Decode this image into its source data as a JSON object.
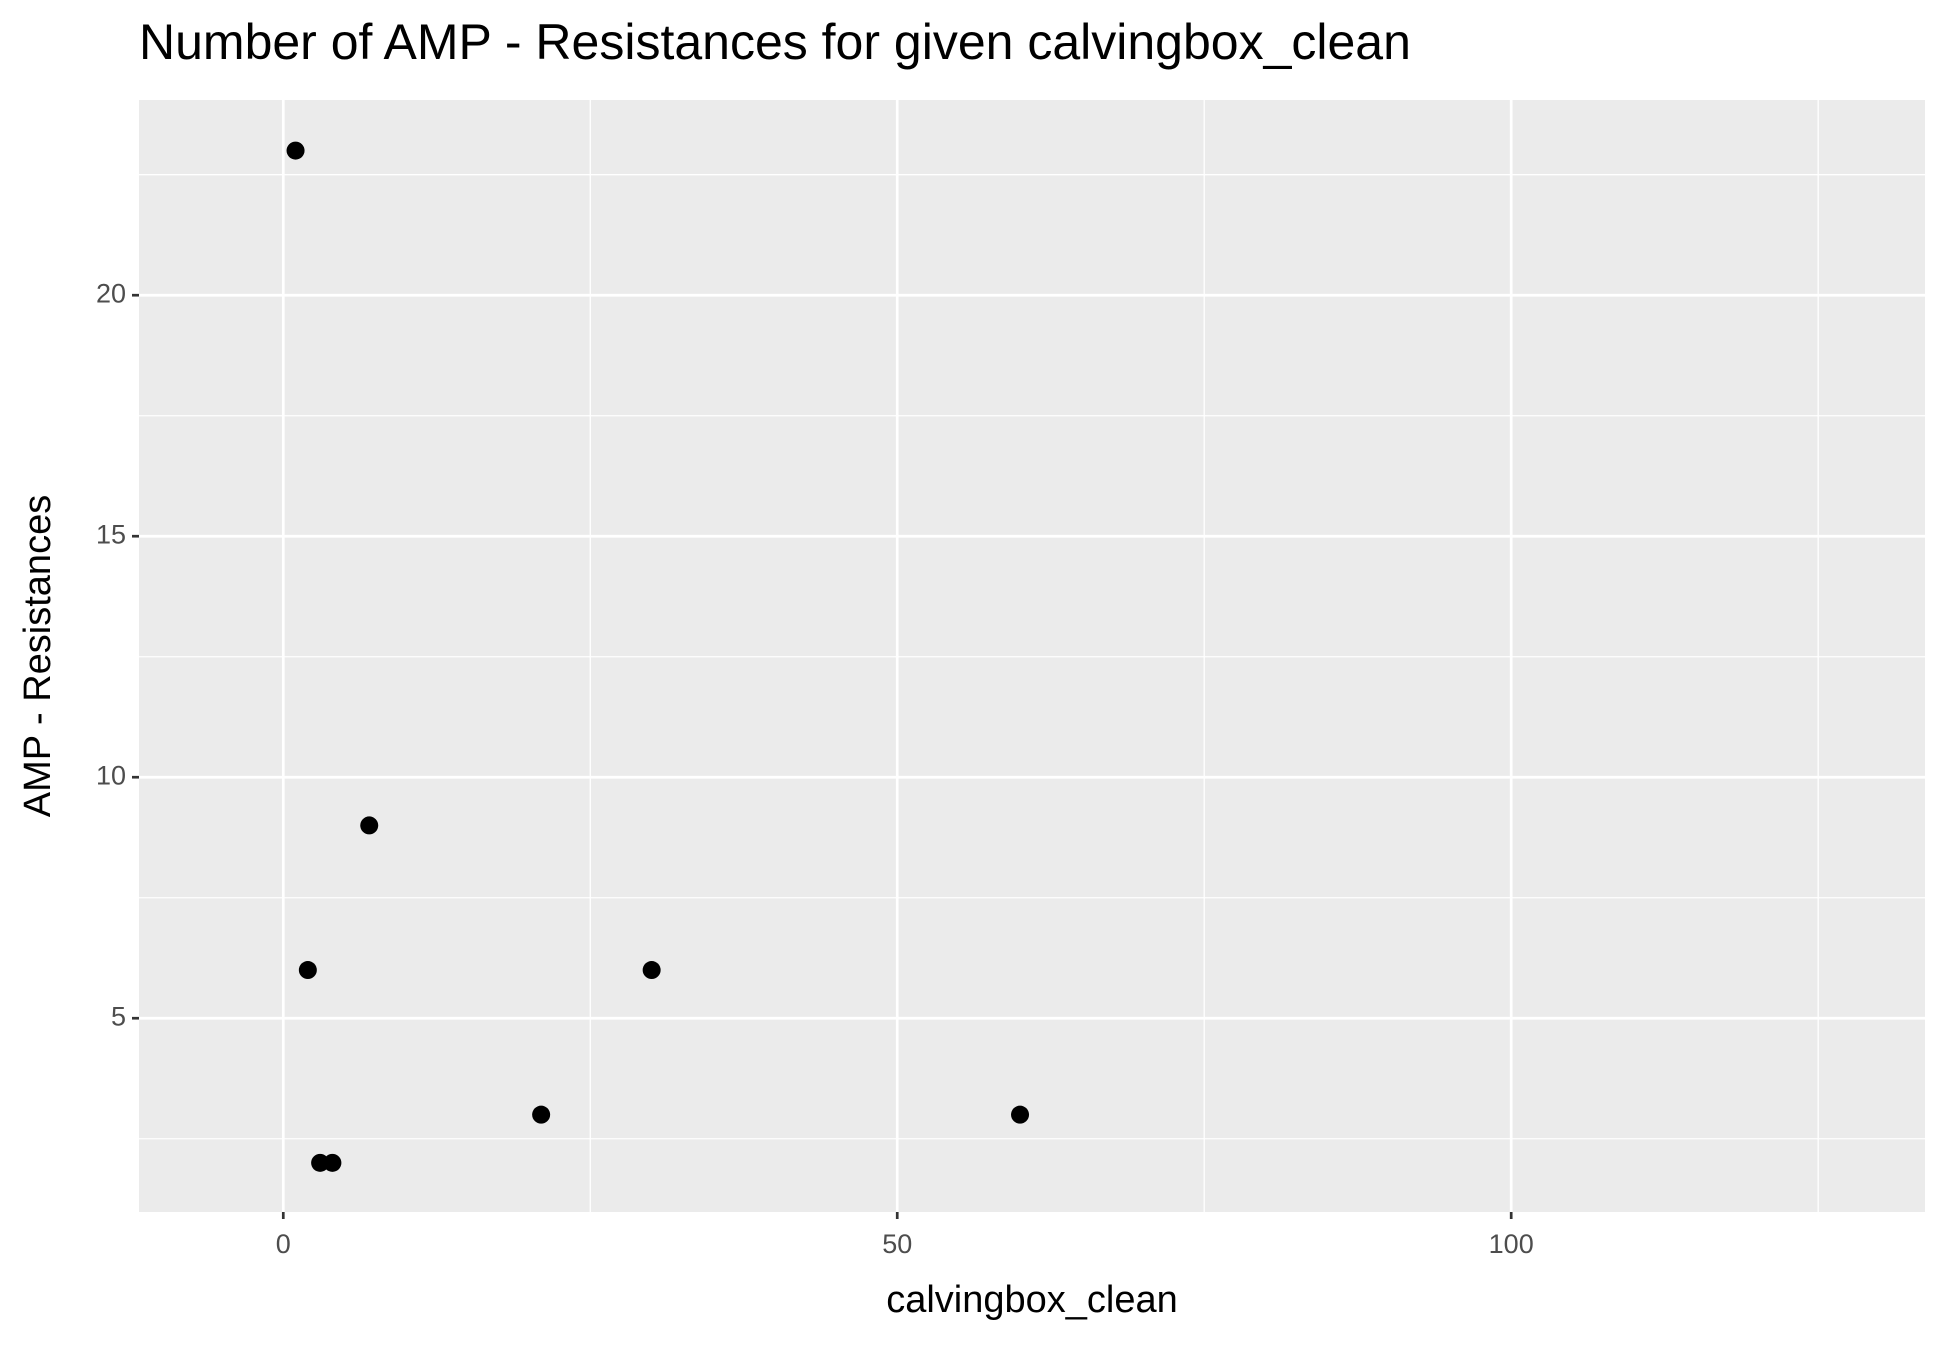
{
  "chart_data": {
    "type": "scatter",
    "title": "Number of AMP - Resistances for given calvingbox_clean",
    "x_label": "calvingbox_clean",
    "y_label": "AMP - Resistances",
    "x": [
      1,
      2,
      3,
      4,
      7,
      21,
      30,
      60
    ],
    "values": [
      23,
      6,
      2,
      2,
      9,
      3,
      6,
      3
    ],
    "color": "#000000",
    "xlim": [
      -11.75,
      133.7
    ],
    "ylim": [
      0.98,
      24.05
    ],
    "xticks": [
      0,
      50,
      100
    ],
    "yticks": [
      5,
      10,
      15,
      20
    ],
    "grid": true
  }
}
